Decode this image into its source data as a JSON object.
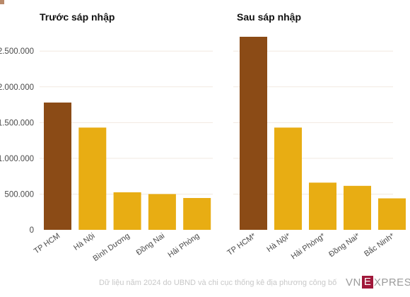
{
  "colors": {
    "highlight": "#8b4b16",
    "bar": "#e8ad13",
    "axis_text": "#4a4a4a",
    "grid": "#f2e9e0",
    "title": "#111111"
  },
  "footer": {
    "source": "Dữ liệu năm 2024 do UBND và chi cục thống kê địa phương công bố",
    "logo": {
      "vn": "VN",
      "e": "E",
      "rest": "XPRES"
    }
  },
  "chart_data": [
    {
      "type": "bar",
      "title": "Trước sáp nhập",
      "categories": [
        "TP HCM",
        "Hà Nội",
        "Bình Dương",
        "Đồng Nai",
        "Hải Phòng"
      ],
      "values": [
        1780000,
        1430000,
        525000,
        500000,
        445000
      ],
      "highlight_index": 0,
      "ylim": [
        0,
        2700000
      ],
      "yticks": [
        0,
        500000,
        1000000,
        1500000,
        2000000,
        2500000
      ],
      "ytick_labels": [
        "0",
        "500.000",
        "1.000.000",
        "1.500.000",
        "2.000.000",
        "2.500.000"
      ],
      "grid": true
    },
    {
      "type": "bar",
      "title": "Sau sáp nhập",
      "categories": [
        "TP HCM*",
        "Hà Nội*",
        "Hải Phòng*",
        "Đồng Nai*",
        "Bắc Ninh*"
      ],
      "values": [
        2700000,
        1430000,
        660000,
        615000,
        440000
      ],
      "highlight_index": 0,
      "ylim": [
        0,
        2700000
      ],
      "grid": true
    }
  ]
}
